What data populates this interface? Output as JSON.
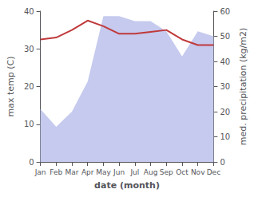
{
  "chart_data": {
    "type": "line",
    "xlabel": "date (month)",
    "ylabel": "max temp (C)",
    "y2label": "med. precipitation (kg/m2)",
    "categories": [
      "Jan",
      "Feb",
      "Mar",
      "Apr",
      "May",
      "Jun",
      "Jul",
      "Aug",
      "Sep",
      "Oct",
      "Nov",
      "Dec"
    ],
    "ylim": [
      0,
      40
    ],
    "yticks": [
      0,
      10,
      20,
      30,
      40
    ],
    "y2lim": [
      0,
      60
    ],
    "y2ticks": [
      0,
      10,
      20,
      30,
      40,
      50,
      60
    ],
    "grid": false,
    "series": [
      {
        "type": "area",
        "axis": "y2",
        "color": "#c5caee",
        "values": [
          21,
          14,
          20,
          32,
          58,
          58,
          56,
          56,
          52,
          42,
          52,
          50
        ]
      },
      {
        "type": "line",
        "color": "#c0393b",
        "values": [
          32.5,
          33.0,
          35.0,
          37.5,
          36.0,
          34.0,
          34.0,
          34.5,
          35.0,
          32.5,
          31.0,
          31.0
        ]
      }
    ]
  }
}
